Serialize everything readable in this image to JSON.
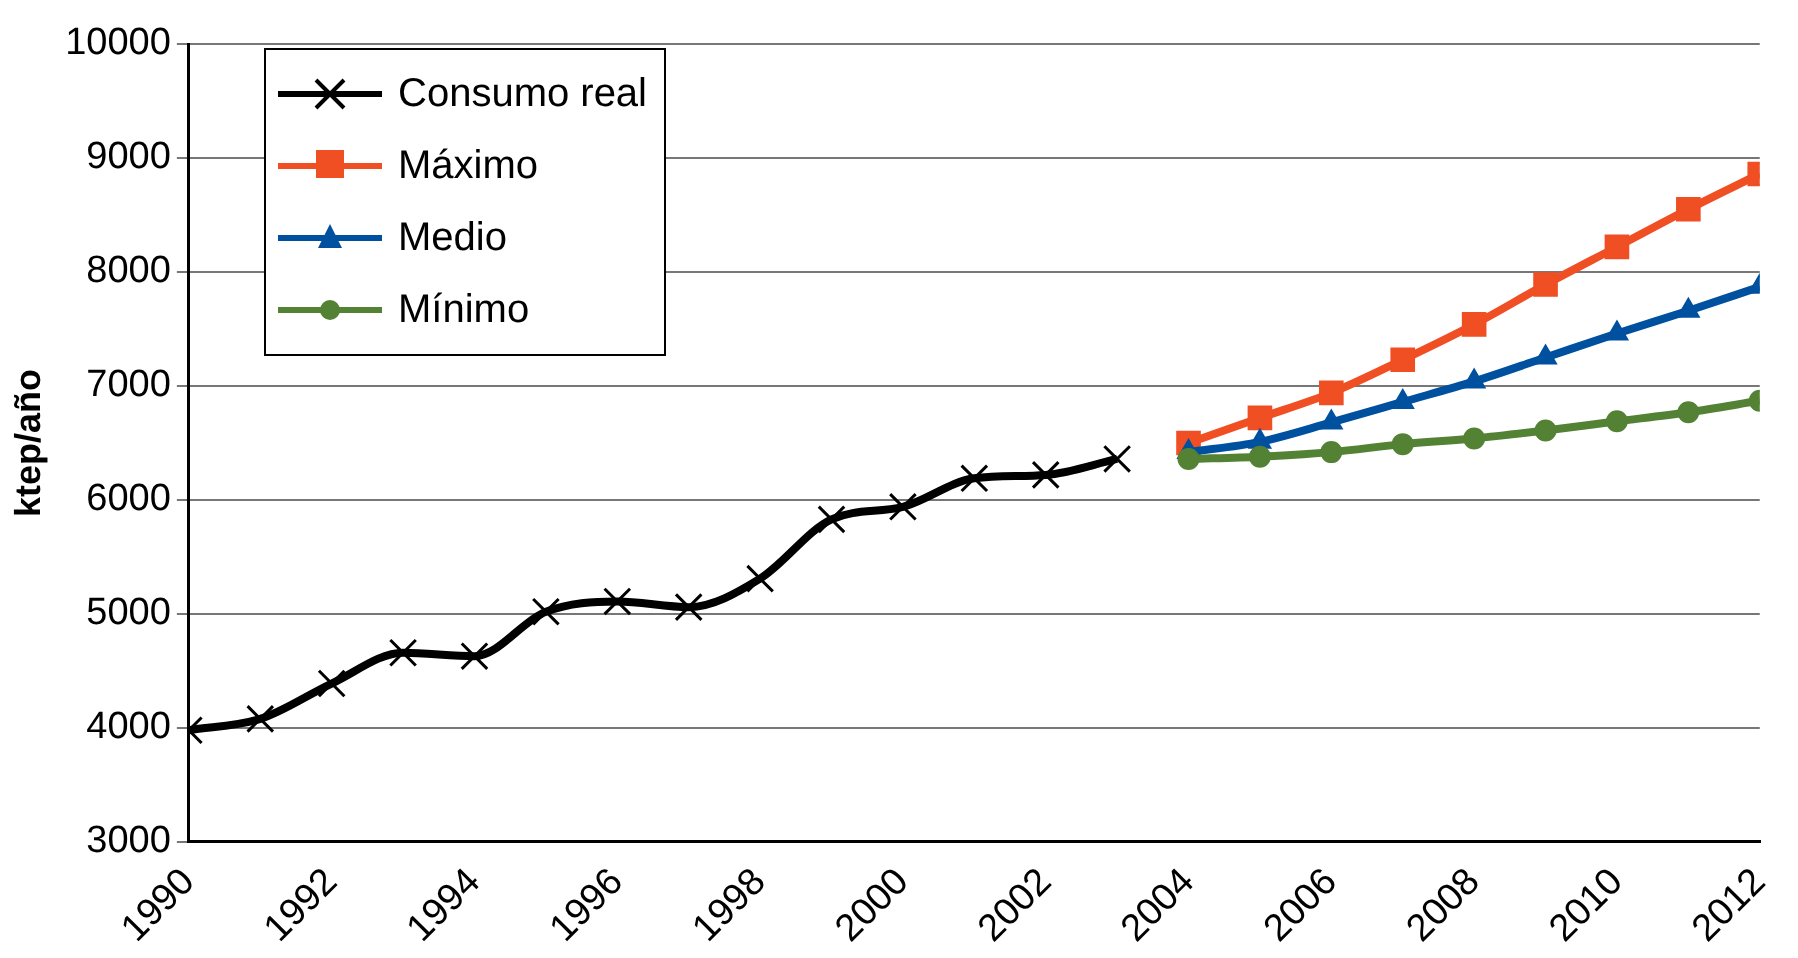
{
  "chart_data": {
    "type": "line",
    "ylabel": "ktep/año",
    "xlim": [
      1990,
      2012
    ],
    "xticks": [
      1990,
      1992,
      1994,
      1996,
      1998,
      2000,
      2002,
      2004,
      2006,
      2008,
      2010,
      2012
    ],
    "ylim": [
      3000,
      10000
    ],
    "yticks": [
      3000,
      4000,
      5000,
      6000,
      7000,
      8000,
      9000,
      10000
    ],
    "grid": "y",
    "legend": "top left",
    "series": [
      {
        "name": "Consumo real",
        "color": "#000000",
        "marker": "cross",
        "x": [
          1990,
          1991,
          1992,
          1993,
          1994,
          1995,
          1996,
          1997,
          1998,
          1999,
          2000,
          2001,
          2002,
          2003
        ],
        "values": [
          3980,
          4080,
          4390,
          4660,
          4630,
          5020,
          5110,
          5060,
          5310,
          5830,
          5940,
          6190,
          6220,
          6360
        ]
      },
      {
        "name": "Máximo",
        "color": "#f04e23",
        "marker": "square",
        "x": [
          2004,
          2005,
          2006,
          2007,
          2008,
          2009,
          2010,
          2011,
          2012
        ],
        "values": [
          6500,
          6720,
          6940,
          7230,
          7540,
          7890,
          8220,
          8550,
          8860
        ]
      },
      {
        "name": "Medio",
        "color": "#0050a0",
        "marker": "triangle",
        "x": [
          2004,
          2005,
          2006,
          2007,
          2008,
          2009,
          2010,
          2011,
          2012
        ],
        "values": [
          6420,
          6510,
          6680,
          6860,
          7040,
          7250,
          7460,
          7660,
          7870
        ]
      },
      {
        "name": "Mínimo",
        "color": "#548235",
        "marker": "circle",
        "x": [
          2004,
          2005,
          2006,
          2007,
          2008,
          2009,
          2010,
          2011,
          2012
        ],
        "values": [
          6360,
          6380,
          6420,
          6490,
          6540,
          6610,
          6690,
          6770,
          6870
        ]
      }
    ]
  }
}
